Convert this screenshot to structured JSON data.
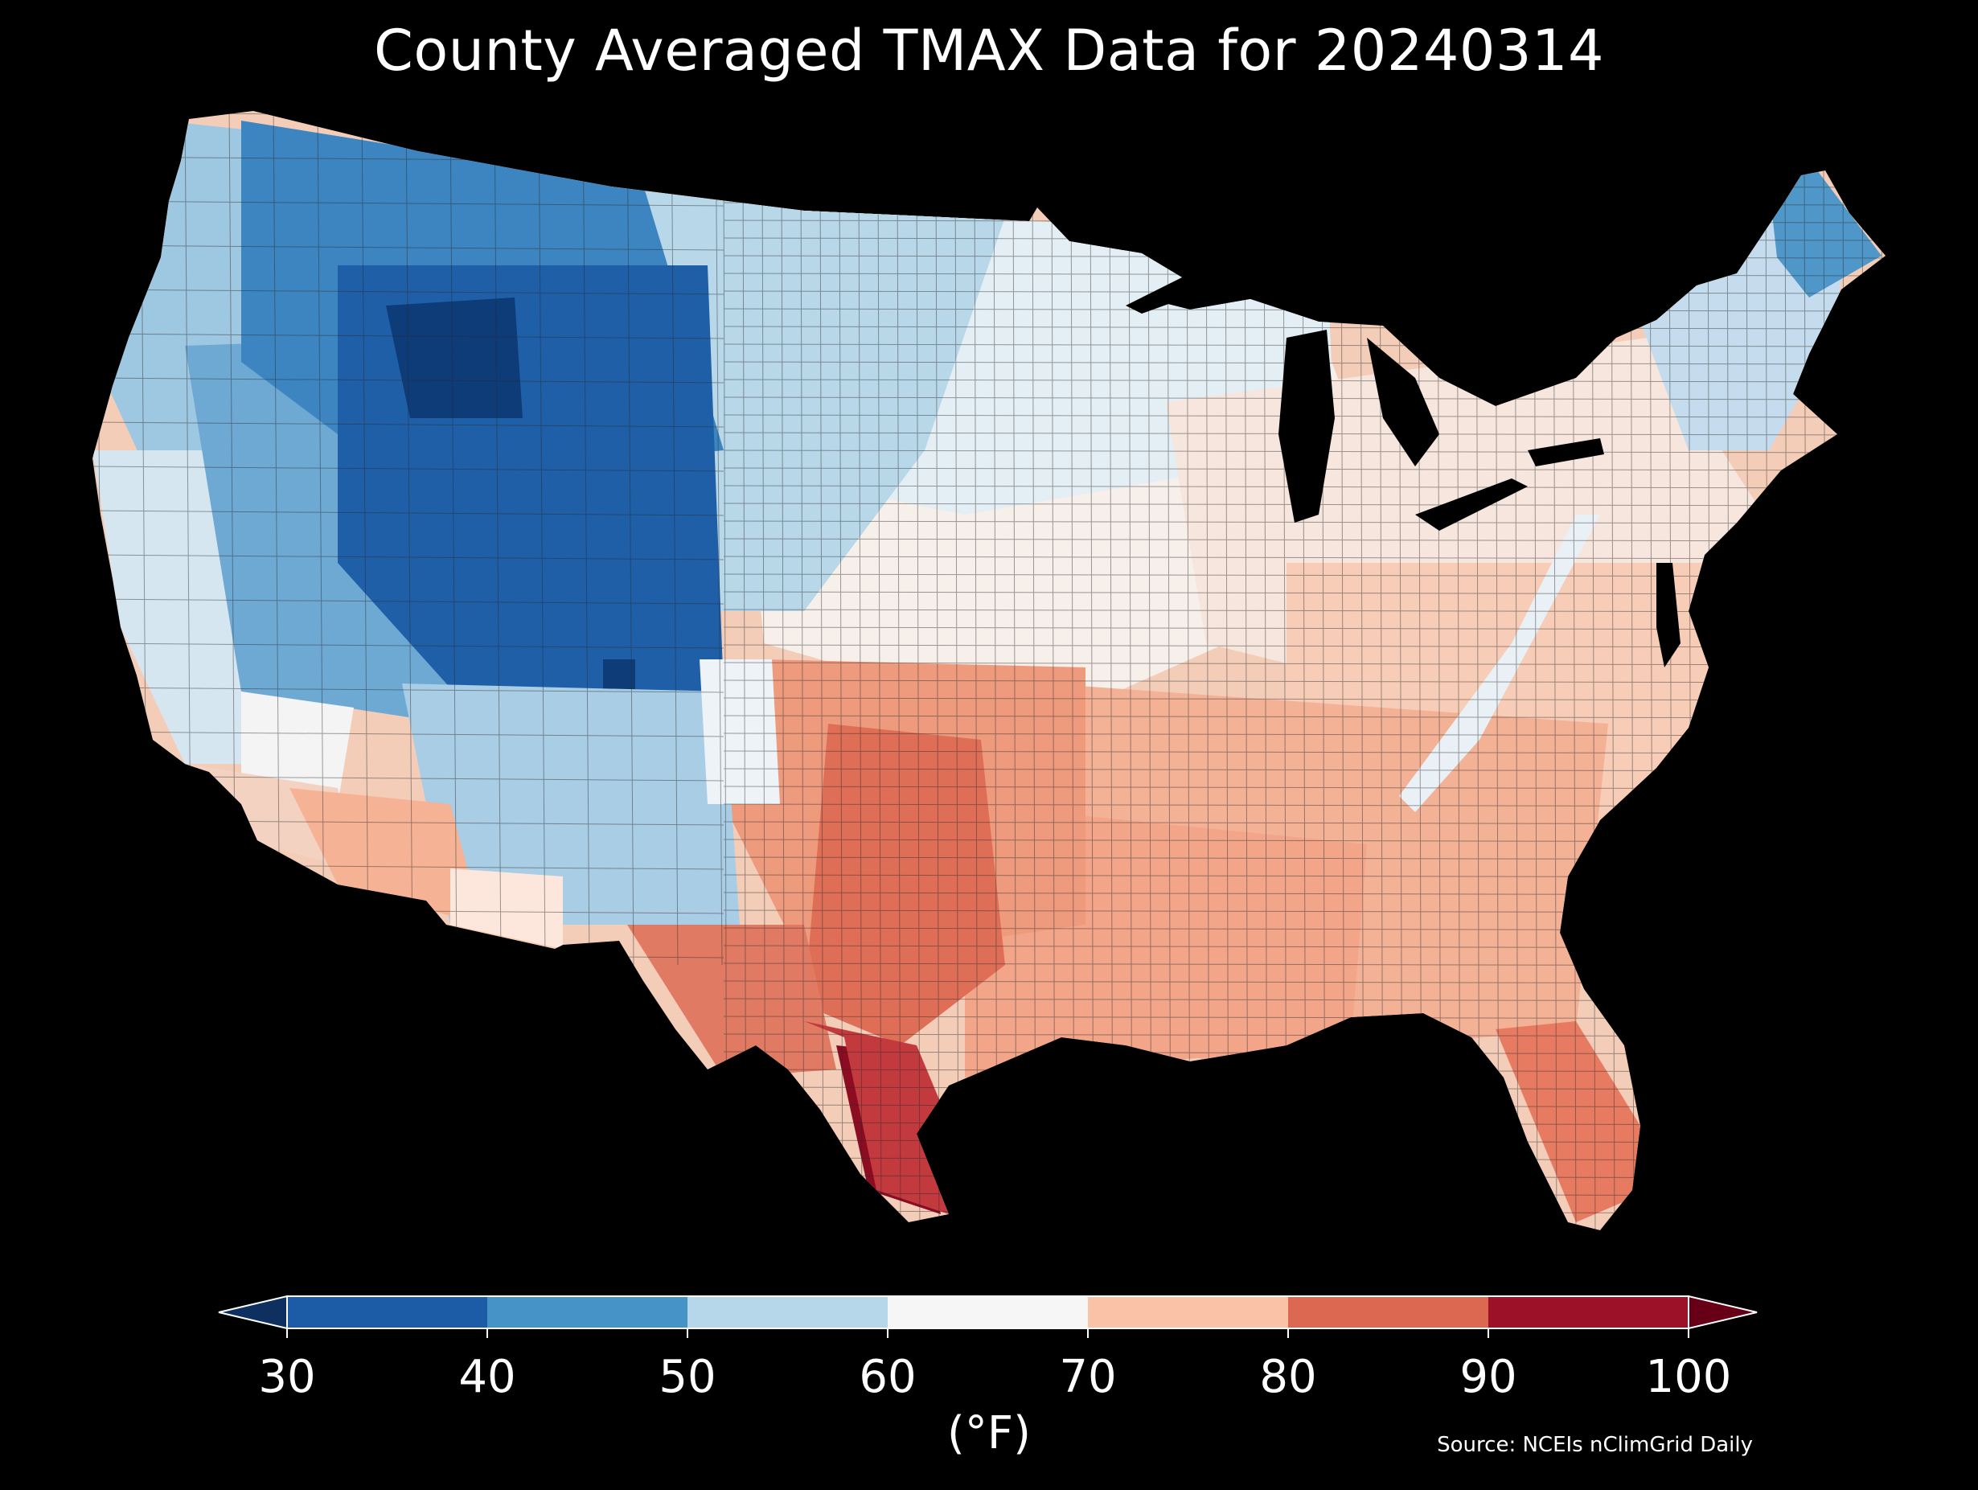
{
  "title": "County Averaged TMAX Data for 20240314",
  "unit_label": "(°F)",
  "source": "Source: NCEIs nClimGrid Daily",
  "colorbar": {
    "ticks": [
      "30",
      "40",
      "50",
      "60",
      "70",
      "80",
      "90",
      "100"
    ],
    "bins": [
      {
        "from": 30,
        "to": 40,
        "color": "#1c5ba6"
      },
      {
        "from": 40,
        "to": 50,
        "color": "#4694c7"
      },
      {
        "from": 50,
        "to": 60,
        "color": "#b5d7e9"
      },
      {
        "from": 60,
        "to": 70,
        "color": "#f6f6f6"
      },
      {
        "from": 70,
        "to": 80,
        "color": "#fac3a7"
      },
      {
        "from": 80,
        "to": 90,
        "color": "#dc6852"
      },
      {
        "from": 90,
        "to": 100,
        "color": "#9c1127"
      }
    ],
    "under_color": "#0d3060",
    "over_color": "#670017",
    "extend": "both"
  },
  "map": {
    "background": "#000000",
    "land_default": "#f6d4c4",
    "border_color": "#222222",
    "regions": [
      {
        "name": "pacific-northwest",
        "color": "#9ec7e2"
      },
      {
        "name": "northern-rockies",
        "color": "#3d85c0"
      },
      {
        "name": "central-rockies",
        "color": "#1f5fa8"
      },
      {
        "name": "yellowstone-core",
        "color": "#0d3c78"
      },
      {
        "name": "great-basin",
        "color": "#6ea9d4"
      },
      {
        "name": "california-coast",
        "color": "#d6e6f1"
      },
      {
        "name": "southern-california",
        "color": "#f3d2c2"
      },
      {
        "name": "southwest-desert",
        "color": "#f6b294"
      },
      {
        "name": "new-mexico",
        "color": "#a9cde5"
      },
      {
        "name": "northern-plains",
        "color": "#b8d8ea"
      },
      {
        "name": "upper-midwest",
        "color": "#e4eef5"
      },
      {
        "name": "central-plains",
        "color": "#f6efea"
      },
      {
        "name": "south-plains",
        "color": "#ee9a7d"
      },
      {
        "name": "texas-central",
        "color": "#df6e57"
      },
      {
        "name": "south-texas",
        "color": "#8c0c22"
      },
      {
        "name": "gulf-coast",
        "color": "#f2a588"
      },
      {
        "name": "southeast",
        "color": "#f3b196"
      },
      {
        "name": "appalachian-ridge",
        "color": "#e9f0f6"
      },
      {
        "name": "mid-atlantic",
        "color": "#f7cdb8"
      },
      {
        "name": "great-lakes",
        "color": "#f6e6dd"
      },
      {
        "name": "new-england",
        "color": "#c4dced"
      },
      {
        "name": "northern-maine",
        "color": "#4f97c9"
      },
      {
        "name": "florida",
        "color": "#e77b62"
      }
    ]
  }
}
